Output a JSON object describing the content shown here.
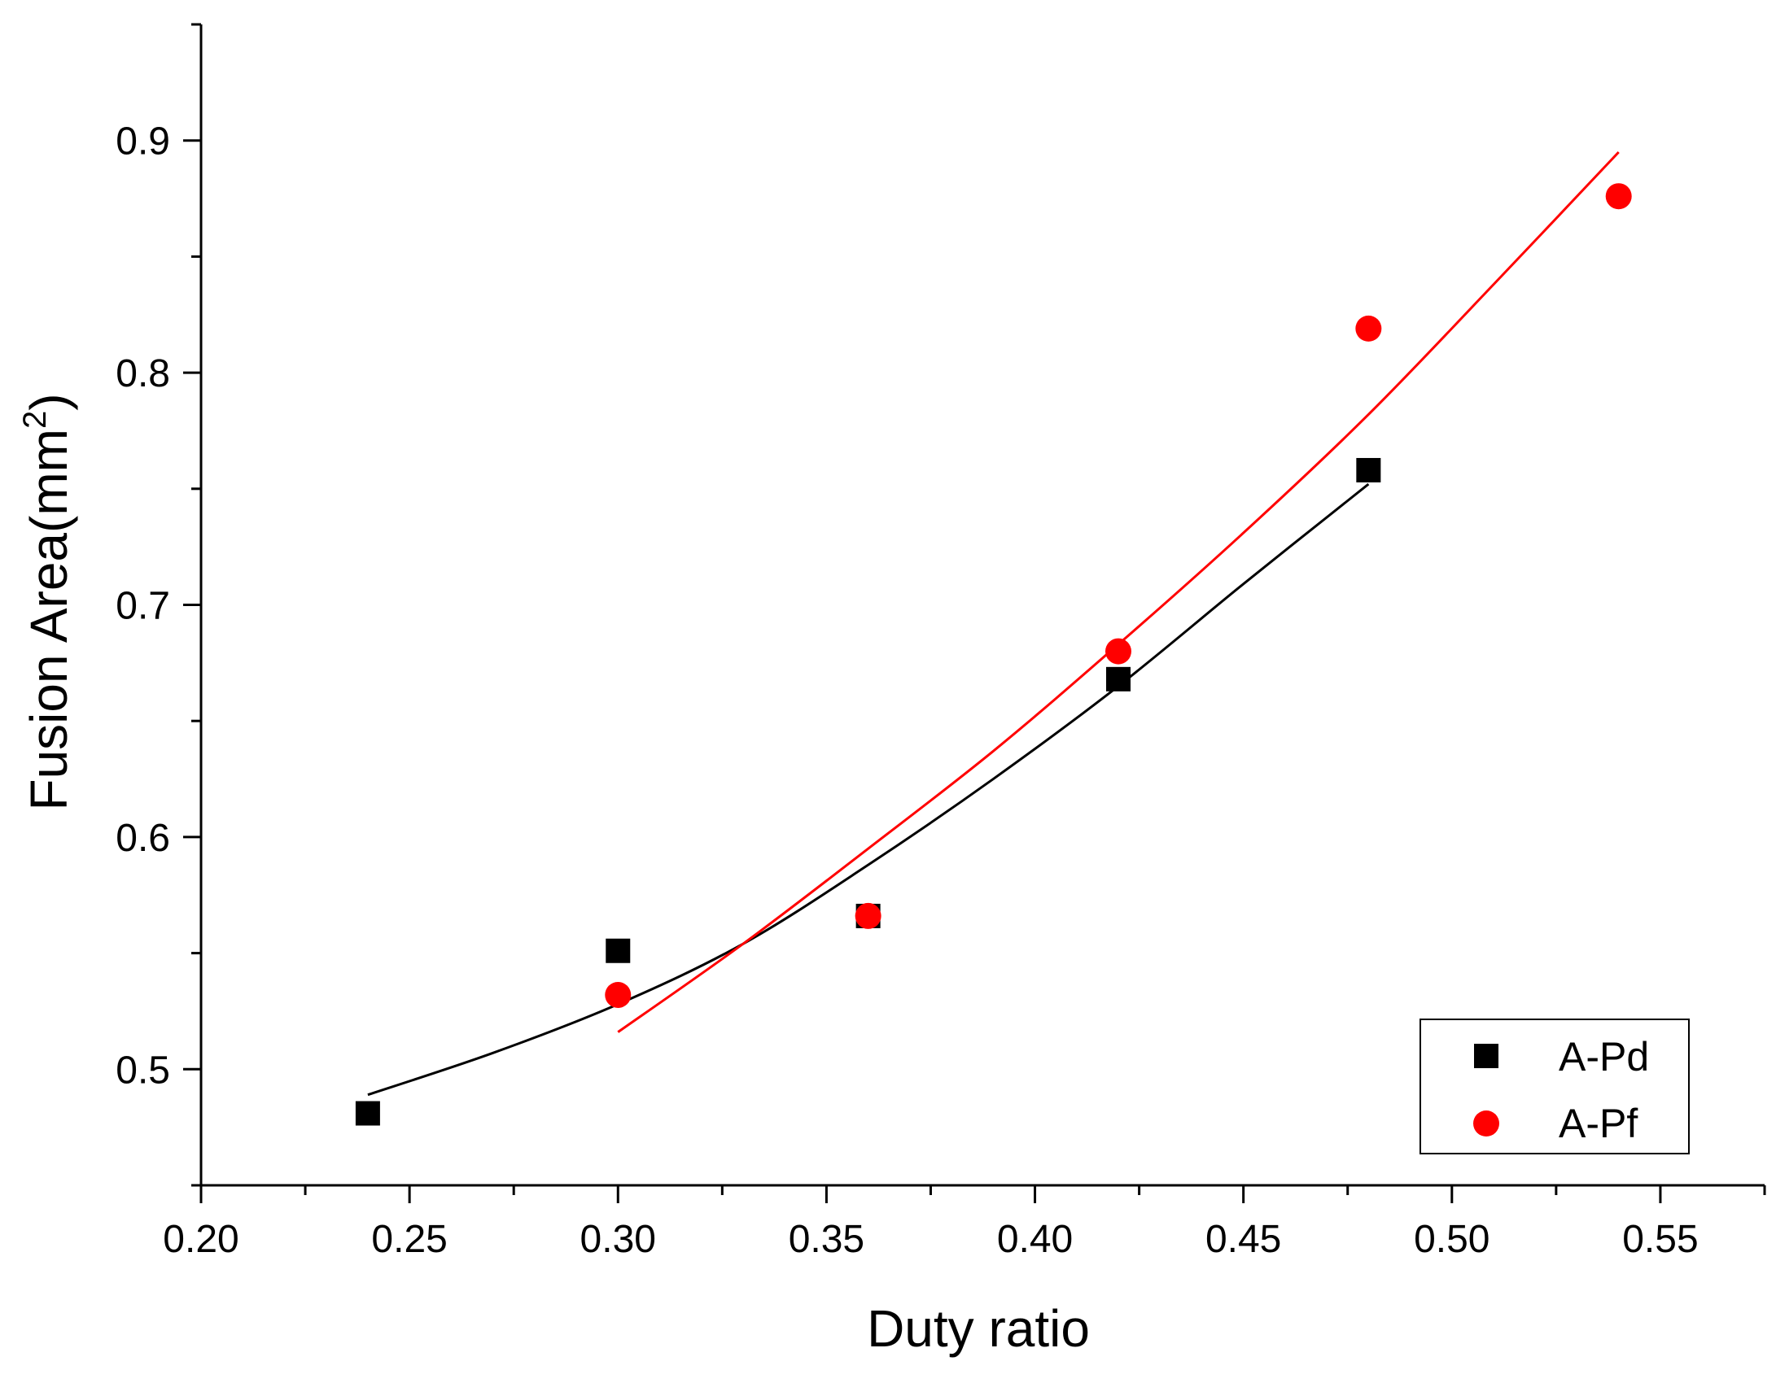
{
  "chart_data": {
    "type": "scatter",
    "title": "",
    "xlabel": "Duty ratio",
    "ylabel_main": "Fusion Area(mm",
    "ylabel_sup": "2",
    "ylabel_close": ")",
    "xlim": [
      0.2,
      0.575
    ],
    "ylim": [
      0.45,
      0.95
    ],
    "x_ticks": [
      0.2,
      0.25,
      0.3,
      0.35,
      0.4,
      0.45,
      0.5,
      0.55
    ],
    "x_tick_labels": [
      "0.20",
      "0.25",
      "0.30",
      "0.35",
      "0.40",
      "0.45",
      "0.50",
      "0.55"
    ],
    "y_ticks": [
      0.5,
      0.6,
      0.7,
      0.8,
      0.9
    ],
    "y_tick_labels": [
      "0.5",
      "0.6",
      "0.7",
      "0.8",
      "0.9"
    ],
    "legend_position": "bottom-right",
    "series": [
      {
        "name": "A-Pd",
        "marker": "square",
        "color": "#000000",
        "x": [
          0.24,
          0.3,
          0.36,
          0.42,
          0.48
        ],
        "y": [
          0.481,
          0.551,
          0.566,
          0.668,
          0.758
        ],
        "fit": {
          "x": [
            0.24,
            0.27,
            0.3,
            0.33,
            0.36,
            0.39,
            0.42,
            0.45,
            0.48
          ],
          "y": [
            0.489,
            0.507,
            0.528,
            0.554,
            0.588,
            0.625,
            0.665,
            0.709,
            0.752
          ]
        }
      },
      {
        "name": "A-Pf",
        "marker": "circle",
        "color": "#ff0000",
        "x": [
          0.3,
          0.36,
          0.42,
          0.48,
          0.54
        ],
        "y": [
          0.532,
          0.566,
          0.68,
          0.819,
          0.876
        ],
        "fit": {
          "x": [
            0.3,
            0.33,
            0.36,
            0.39,
            0.42,
            0.45,
            0.48,
            0.51,
            0.54
          ],
          "y": [
            0.516,
            0.554,
            0.595,
            0.637,
            0.683,
            0.731,
            0.782,
            0.838,
            0.895
          ]
        }
      }
    ]
  }
}
